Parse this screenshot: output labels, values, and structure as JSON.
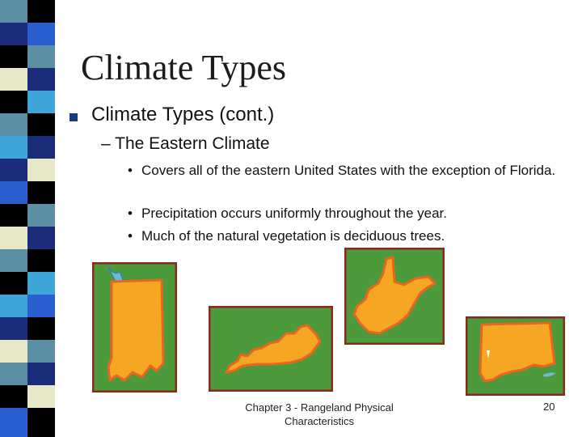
{
  "slide": {
    "title": "Climate Types",
    "bullet": "Climate Types (cont.)",
    "subbullet": "– The Eastern Climate",
    "points": [
      {
        "marker": "•",
        "text": "Covers all of the eastern United States with the exception of Florida."
      },
      {
        "marker": "•",
        "text": "Precipitation occurs uniformly throughout the year."
      },
      {
        "marker": "•",
        "text": "Much of the natural vegetation is deciduous trees."
      }
    ],
    "footer": "Chapter 3 - Rangeland Physical Characteristics",
    "page_number": "20"
  },
  "images": [
    {
      "icon": "indiana-map-icon"
    },
    {
      "icon": "kentucky-map-icon"
    },
    {
      "icon": "west-virginia-map-icon"
    },
    {
      "icon": "connecticut-map-icon"
    }
  ],
  "colors": {
    "map_background": "#4c9a3c",
    "state_fill": "#f5a623",
    "state_outline": "#e8661f",
    "frame": "#8b2a1a",
    "water": "#6fb7d6",
    "bullet_marker": "#1b3a7a"
  }
}
